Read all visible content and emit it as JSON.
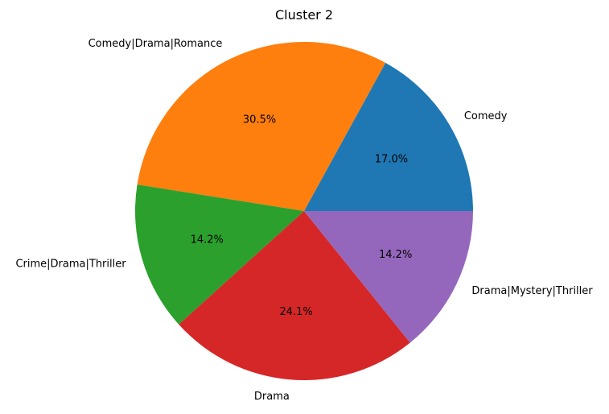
{
  "chart_data": {
    "type": "pie",
    "title": "Cluster 2",
    "categories": [
      "Comedy",
      "Comedy|Drama|Romance",
      "Crime|Drama|Thriller",
      "Drama",
      "Drama|Mystery|Thriller"
    ],
    "values": [
      17.0,
      30.5,
      14.2,
      24.1,
      14.2
    ],
    "pct_labels": [
      "17.0%",
      "30.5%",
      "14.2%",
      "24.1%",
      "14.2%"
    ],
    "colors": [
      "#1f77b4",
      "#ff7f0e",
      "#2ca02c",
      "#d62728",
      "#9467bd"
    ],
    "start_angle_deg": 0,
    "direction": "counterclockwise"
  }
}
